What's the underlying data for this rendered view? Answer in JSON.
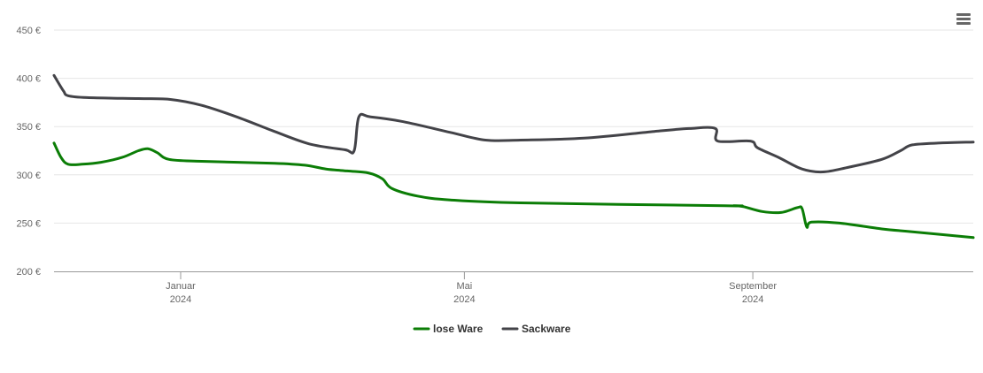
{
  "menu": {
    "icon": "hamburger-menu-icon"
  },
  "chart_data": {
    "type": "line",
    "title": "",
    "xlabel": "",
    "ylabel": "",
    "ylim": [
      200,
      450
    ],
    "yticks": [
      200,
      250,
      300,
      350,
      400,
      450
    ],
    "yunit": "€",
    "xlim": [
      "2023-11-08",
      "2024-12-04"
    ],
    "xticks": [
      {
        "date": "2024-01-01",
        "label": "Januar",
        "year": "2024"
      },
      {
        "date": "2024-05-01",
        "label": "Mai",
        "year": "2024"
      },
      {
        "date": "2024-09-01",
        "label": "September",
        "year": "2024"
      }
    ],
    "grid": true,
    "legend_position": "bottom-center",
    "series": [
      {
        "name": "lose Ware",
        "color": "#0b7d06",
        "points": [
          [
            "2023-11-08",
            333
          ],
          [
            "2023-11-11",
            318
          ],
          [
            "2023-11-14",
            311
          ],
          [
            "2023-11-20",
            311
          ],
          [
            "2023-11-28",
            313
          ],
          [
            "2023-12-07",
            318
          ],
          [
            "2023-12-14",
            325
          ],
          [
            "2023-12-18",
            327
          ],
          [
            "2023-12-22",
            323
          ],
          [
            "2023-12-27",
            316
          ],
          [
            "2024-01-10",
            314
          ],
          [
            "2024-02-10",
            312
          ],
          [
            "2024-02-23",
            310
          ],
          [
            "2024-03-03",
            306
          ],
          [
            "2024-03-12",
            304
          ],
          [
            "2024-03-21",
            302
          ],
          [
            "2024-03-27",
            296
          ],
          [
            "2024-03-31",
            286
          ],
          [
            "2024-04-11",
            278
          ],
          [
            "2024-04-25",
            274
          ],
          [
            "2024-05-25",
            271
          ],
          [
            "2024-08-20",
            268
          ],
          [
            "2024-08-24",
            268
          ],
          [
            "2024-08-28",
            267
          ],
          [
            "2024-09-05",
            262
          ],
          [
            "2024-09-13",
            261
          ],
          [
            "2024-09-20",
            266
          ],
          [
            "2024-09-22",
            265
          ],
          [
            "2024-09-24",
            246
          ],
          [
            "2024-09-26",
            251
          ],
          [
            "2024-10-08",
            250
          ],
          [
            "2024-10-26",
            244
          ],
          [
            "2024-11-08",
            241
          ],
          [
            "2024-12-04",
            235
          ]
        ]
      },
      {
        "name": "Sackware",
        "color": "#434348",
        "points": [
          [
            "2023-11-08",
            403
          ],
          [
            "2023-11-12",
            387
          ],
          [
            "2023-11-14",
            382
          ],
          [
            "2023-11-22",
            380
          ],
          [
            "2023-12-14",
            379
          ],
          [
            "2023-12-28",
            378
          ],
          [
            "2024-01-10",
            372
          ],
          [
            "2024-01-25",
            360
          ],
          [
            "2024-02-10",
            345
          ],
          [
            "2024-02-25",
            332
          ],
          [
            "2024-03-11",
            326
          ],
          [
            "2024-03-15",
            325
          ],
          [
            "2024-03-17",
            360
          ],
          [
            "2024-03-22",
            360
          ],
          [
            "2024-04-05",
            355
          ],
          [
            "2024-04-25",
            344
          ],
          [
            "2024-05-10",
            336
          ],
          [
            "2024-05-25",
            336
          ],
          [
            "2024-06-21",
            338
          ],
          [
            "2024-07-21",
            345
          ],
          [
            "2024-08-05",
            348
          ],
          [
            "2024-08-16",
            348
          ],
          [
            "2024-08-17",
            335
          ],
          [
            "2024-08-31",
            335
          ],
          [
            "2024-09-03",
            328
          ],
          [
            "2024-09-12",
            318
          ],
          [
            "2024-09-22",
            306
          ],
          [
            "2024-10-01",
            303
          ],
          [
            "2024-10-12",
            308
          ],
          [
            "2024-10-26",
            316
          ],
          [
            "2024-11-03",
            325
          ],
          [
            "2024-11-08",
            331
          ],
          [
            "2024-11-20",
            333
          ],
          [
            "2024-12-04",
            334
          ]
        ]
      }
    ]
  }
}
